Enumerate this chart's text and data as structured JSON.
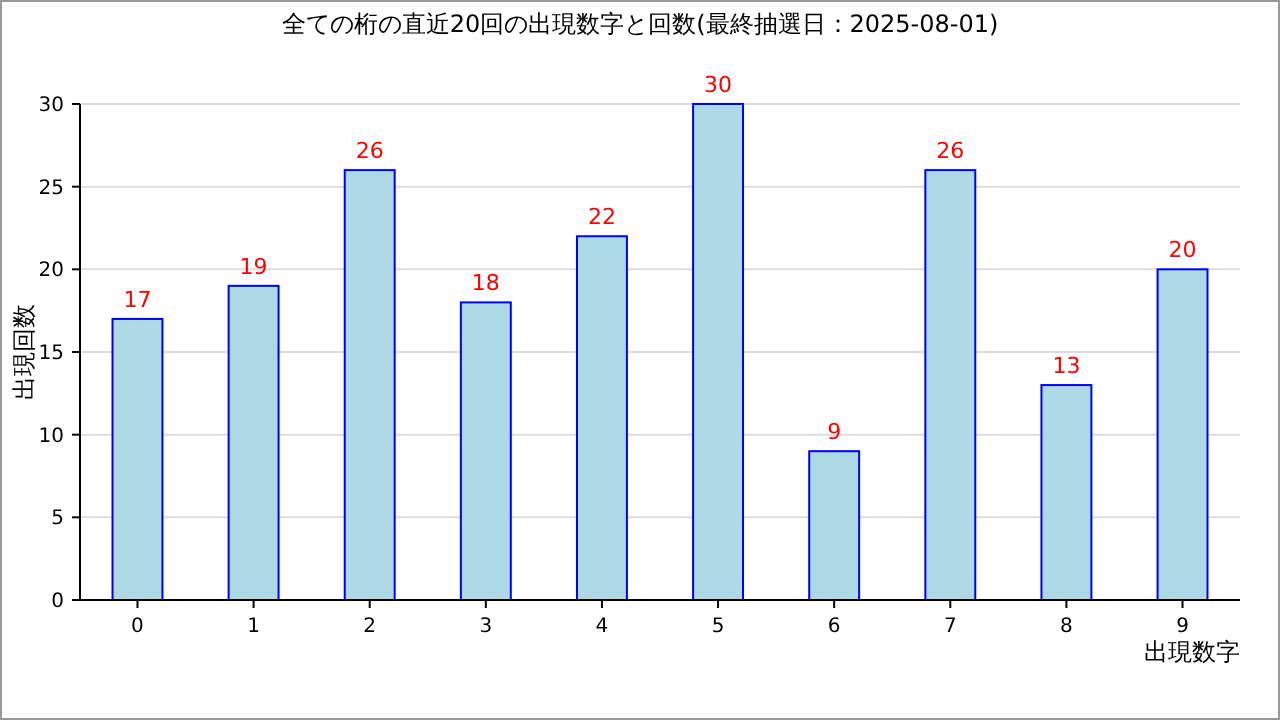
{
  "chart_data": {
    "type": "bar",
    "title": "全ての桁の直近20回の出現数字と回数(最終抽選日：2025-08-01)",
    "xlabel": "出現数字",
    "ylabel": "出現回数",
    "categories": [
      "0",
      "1",
      "2",
      "3",
      "4",
      "5",
      "6",
      "7",
      "8",
      "9"
    ],
    "values": [
      17,
      19,
      26,
      18,
      22,
      30,
      9,
      26,
      13,
      20
    ],
    "color": "#add8e6",
    "ylim": [
      0,
      30
    ],
    "yticks": [
      0,
      5,
      10,
      15,
      20,
      25,
      30
    ],
    "grid": "y",
    "data_labels": true
  }
}
